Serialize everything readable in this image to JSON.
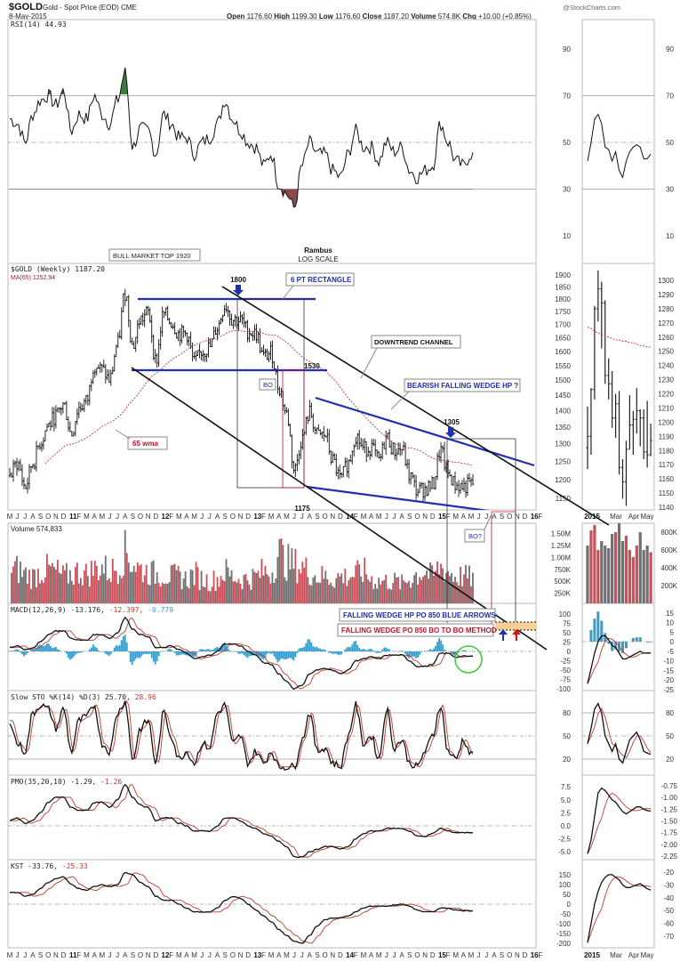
{
  "header": {
    "symbol": "$GOLD",
    "name": "Gold - Spot Price (EOD)",
    "exchange": "CME",
    "date": "8-May-2015",
    "watermark": "@StockCharts.com",
    "open_label": "Open",
    "open": "1176.60",
    "high_label": "High",
    "high": "1199.30",
    "low_label": "Low",
    "low": "1176.60",
    "close_label": "Close",
    "close": "1187.20",
    "volume_label": "Volume",
    "volume": "574.8K",
    "chg_label": "Chg",
    "chg": "+10.00 (+0.85%)"
  },
  "colors": {
    "price": "#111111",
    "ma": "#c0392b",
    "up_volume": "#c8505a",
    "down_volume": "#707070",
    "hist": "#3a9cc8",
    "rsi_high": "#3f7a3f",
    "rsi_low": "#8a4a4a",
    "annot_blue": "#1f2fb0",
    "annot_red": "#c8102e"
  },
  "annotations": {
    "bull_top": "BULL MARKET TOP 1920",
    "author": "Rambus",
    "scale": "LOG SCALE",
    "p1800": "1800",
    "rect": "6 PT RECTANGLE",
    "channel": "DOWNTREND CHANNEL",
    "p1530": "1530",
    "bo": "BO",
    "wedge": "BEARISH FALLING WEDGE HP ?",
    "p1305": "1305",
    "wma": "65 wma",
    "p1175": "1175",
    "bo_q": "BO?",
    "po_blue": "FALLING WEDGE HP PO 850 BLUE ARROWS",
    "po_red": "FALLING WEDGE PO 850 BO TO BO METHOD"
  },
  "chart_data": {
    "type": "line",
    "title": "$GOLD Gold - Spot Price (EOD) CME weekly",
    "x_start": "May 2010",
    "x_resolution": "monthly",
    "x_labels": [
      "M",
      "J",
      "J",
      "A",
      "S",
      "O",
      "N",
      "D",
      "11",
      "F",
      "M",
      "A",
      "M",
      "J",
      "J",
      "A",
      "S",
      "O",
      "N",
      "D",
      "12",
      "F",
      "M",
      "A",
      "M",
      "J",
      "J",
      "A",
      "S",
      "O",
      "N",
      "D",
      "13",
      "F",
      "M",
      "A",
      "M",
      "J",
      "J",
      "A",
      "S",
      "O",
      "N",
      "D",
      "14",
      "F",
      "M",
      "A",
      "M",
      "J",
      "J",
      "A",
      "S",
      "O",
      "N",
      "D",
      "15",
      "F",
      "M",
      "A",
      "M",
      "J",
      "J",
      "A",
      "S",
      "O",
      "N",
      "D",
      "16",
      "F"
    ],
    "mini_x_labels": [
      "2015",
      "Mar",
      "Apr",
      "May"
    ],
    "panels": {
      "rsi": {
        "legend": "RSI(14) 44.93",
        "ticks": [
          "90",
          "70",
          "50",
          "30",
          "10"
        ],
        "ylim": [
          0,
          100
        ],
        "values": [
          60,
          58,
          50,
          62,
          68,
          70,
          66,
          72,
          55,
          62,
          60,
          70,
          62,
          58,
          68,
          80,
          48,
          56,
          55,
          45,
          62,
          58,
          52,
          52,
          45,
          50,
          52,
          58,
          68,
          60,
          55,
          50,
          48,
          40,
          45,
          32,
          28,
          22,
          40,
          50,
          45,
          45,
          38,
          35,
          45,
          55,
          48,
          48,
          42,
          50,
          46,
          48,
          38,
          35,
          38,
          40,
          58,
          50,
          42,
          40,
          45
        ]
      },
      "price": {
        "legend": "$GOLD (Weekly) 1187.20",
        "ma_legend": "MA(65) 1252.94",
        "scale": "log",
        "ticks": [
          "1900",
          "1850",
          "1800",
          "1750",
          "1700",
          "1650",
          "1600",
          "1550",
          "1500",
          "1450",
          "1400",
          "1350",
          "1300",
          "1250",
          "1200",
          "1150"
        ],
        "ylim": [
          1130,
          1940
        ],
        "values": [
          1210,
          1245,
          1180,
          1245,
          1305,
          1355,
          1385,
          1420,
          1330,
          1410,
          1430,
          1555,
          1535,
          1500,
          1625,
          1825,
          1620,
          1720,
          1745,
          1565,
          1740,
          1710,
          1665,
          1665,
          1560,
          1600,
          1615,
          1690,
          1775,
          1720,
          1715,
          1675,
          1665,
          1580,
          1595,
          1475,
          1390,
          1225,
          1315,
          1395,
          1325,
          1325,
          1250,
          1200,
          1245,
          1325,
          1285,
          1290,
          1250,
          1320,
          1280,
          1285,
          1210,
          1170,
          1175,
          1185,
          1280,
          1215,
          1185,
          1180,
          1187
        ]
      },
      "volume": {
        "legend": "Volume 574,833",
        "ticks": [
          "1.50M",
          "1.25M",
          "1.00M",
          "750K",
          "500K",
          "250K"
        ],
        "unit": "K",
        "values": [
          700,
          750,
          650,
          600,
          700,
          750,
          700,
          600,
          650,
          700,
          650,
          750,
          800,
          700,
          800,
          1100,
          900,
          750,
          700,
          650,
          650,
          600,
          600,
          550,
          650,
          550,
          500,
          550,
          700,
          600,
          550,
          550,
          600,
          700,
          700,
          1100,
          900,
          850,
          800,
          700,
          600,
          600,
          550,
          600,
          600,
          650,
          700,
          550,
          500,
          500,
          500,
          450,
          550,
          650,
          700,
          600,
          800,
          700,
          600,
          600,
          575
        ]
      },
      "macd": {
        "legend": "MACD(12,26,9) -13.176,",
        "signal_legend": "-12.397,",
        "hist_legend": "-0.779",
        "ticks": [
          "100",
          "75",
          "50",
          "25",
          "0",
          "-25",
          "-50",
          "-75",
          "-100"
        ],
        "values": [
          10,
          15,
          5,
          10,
          25,
          45,
          55,
          55,
          35,
          30,
          30,
          45,
          45,
          35,
          50,
          90,
          60,
          45,
          40,
          10,
          10,
          15,
          5,
          -5,
          -20,
          -15,
          -10,
          0,
          20,
          20,
          15,
          0,
          -10,
          -30,
          -35,
          -60,
          -80,
          -100,
          -90,
          -60,
          -50,
          -45,
          -50,
          -60,
          -50,
          -25,
          -20,
          -15,
          -20,
          -10,
          -10,
          -10,
          -25,
          -40,
          -40,
          -35,
          -5,
          -5,
          -15,
          -13,
          -13
        ]
      },
      "sto": {
        "legend": "Slow STO %K(14) %D(3) 25.70,",
        "d_legend": "28.96",
        "ticks": [
          "80",
          "50",
          "20"
        ],
        "values": [
          70,
          40,
          30,
          80,
          90,
          85,
          60,
          85,
          30,
          70,
          75,
          90,
          40,
          30,
          80,
          95,
          20,
          60,
          70,
          15,
          80,
          50,
          20,
          30,
          15,
          40,
          35,
          80,
          90,
          40,
          50,
          15,
          30,
          15,
          30,
          10,
          10,
          10,
          45,
          80,
          30,
          35,
          15,
          10,
          50,
          90,
          40,
          50,
          20,
          85,
          35,
          45,
          15,
          10,
          30,
          50,
          90,
          30,
          20,
          45,
          26
        ]
      },
      "pmo": {
        "legend": "PMO(35,20,10) -1.29,",
        "signal_legend": "-1.26",
        "ticks": [
          "7.5",
          "5.0",
          "2.5",
          "0.0",
          "-2.5",
          "-5.0"
        ],
        "values": [
          1,
          1.5,
          0.5,
          1,
          2.5,
          4.5,
          5.5,
          5.5,
          3.5,
          3,
          3,
          4.5,
          4.5,
          3.5,
          5,
          8,
          5.5,
          4,
          3.5,
          1,
          1.5,
          1.5,
          0.5,
          0,
          -1,
          -1,
          -1,
          0,
          1.5,
          1.5,
          1,
          0,
          -0.5,
          -1.5,
          -2,
          -3,
          -4,
          -6,
          -6,
          -5,
          -4.5,
          -4,
          -4,
          -4.5,
          -4,
          -2.5,
          -1.5,
          -1,
          -1,
          -0.5,
          -0.5,
          -0.5,
          -1,
          -2,
          -2,
          -1.5,
          -0.5,
          -1,
          -1.3,
          -1.3,
          -1.29
        ]
      },
      "kst": {
        "legend": "KST -33.76,",
        "signal_legend": "-25.33",
        "ticks": [
          "150",
          "100",
          "50",
          "0",
          "-50",
          "-100",
          "-150",
          "-200"
        ],
        "values": [
          60,
          60,
          40,
          50,
          80,
          110,
          130,
          140,
          100,
          80,
          70,
          90,
          100,
          90,
          100,
          160,
          150,
          110,
          90,
          40,
          20,
          20,
          0,
          -20,
          -40,
          -40,
          -40,
          -20,
          20,
          40,
          30,
          0,
          -30,
          -60,
          -90,
          -130,
          -160,
          -190,
          -200,
          -160,
          -110,
          -80,
          -70,
          -70,
          -60,
          -40,
          -20,
          -10,
          -10,
          -10,
          -5,
          0,
          -10,
          -30,
          -40,
          -40,
          -20,
          -20,
          -30,
          -33,
          -34
        ]
      }
    },
    "mini": {
      "period": "2015 weekly",
      "close": [
        1190,
        1223,
        1280,
        1294,
        1284,
        1233,
        1227,
        1203,
        1213,
        1168,
        1158,
        1181,
        1198,
        1202,
        1208,
        1203,
        1179,
        1177,
        1187
      ],
      "high": [
        1211,
        1224,
        1282,
        1307,
        1299,
        1286,
        1245,
        1236,
        1220,
        1222,
        1174,
        1187,
        1219,
        1208,
        1224,
        1209,
        1209,
        1215,
        1199
      ],
      "low": [
        1167,
        1177,
        1216,
        1271,
        1252,
        1227,
        1216,
        1196,
        1189,
        1163,
        1146,
        1141,
        1181,
        1177,
        1192,
        1183,
        1174,
        1168,
        1176
      ],
      "ma": [
        1267,
        1266,
        1264,
        1263,
        1262,
        1261,
        1260,
        1259,
        1258,
        1258,
        1257,
        1257,
        1256,
        1256,
        1255,
        1254,
        1254,
        1253,
        1253
      ],
      "price_ticks": [
        "1300",
        "1290",
        "1280",
        "1270",
        "1260",
        "1250",
        "1240",
        "1230",
        "1220",
        "1210",
        "1200",
        "1190",
        "1180",
        "1170",
        "1160",
        "1150",
        "1140"
      ],
      "rsi": [
        42,
        50,
        60,
        62,
        58,
        48,
        47,
        42,
        46,
        38,
        35,
        42,
        46,
        48,
        49,
        48,
        43,
        43,
        45
      ],
      "rsi_ticks": [
        "90",
        "70",
        "50",
        "30",
        "10"
      ],
      "volume": [
        650,
        820,
        880,
        600,
        700,
        650,
        620,
        780,
        800,
        900,
        700,
        760,
        600,
        520,
        650,
        800,
        600,
        650,
        575
      ],
      "volume_ticks": [
        "800K",
        "600K",
        "400K",
        "200K"
      ],
      "macd": [
        -22,
        -14,
        -6,
        0,
        3,
        3,
        1,
        -2,
        -3,
        -6,
        -9,
        -9,
        -8,
        -7,
        -6,
        -5,
        -6,
        -6,
        -6
      ],
      "macd_ticks": [
        "15",
        "10",
        "5",
        "0",
        "-5",
        "-10",
        "-15",
        "-20",
        "-25"
      ],
      "sto": [
        40,
        60,
        85,
        92,
        80,
        50,
        40,
        30,
        40,
        20,
        15,
        30,
        45,
        50,
        55,
        45,
        30,
        28,
        26
      ],
      "sto_ticks": [
        "80",
        "50",
        "20"
      ],
      "pmo": [
        -2.2,
        -1.9,
        -1.4,
        -0.9,
        -0.8,
        -0.85,
        -0.95,
        -1.05,
        -1.1,
        -1.2,
        -1.3,
        -1.35,
        -1.3,
        -1.25,
        -1.2,
        -1.2,
        -1.25,
        -1.28,
        -1.29
      ],
      "pmo_ticks": [
        "-0.75",
        "-1.00",
        "-1.25",
        "-1.50",
        "-1.75",
        "-2.00",
        "-2.25"
      ],
      "kst": [
        -75,
        -60,
        -45,
        -35,
        -28,
        -24,
        -22,
        -22,
        -24,
        -26,
        -30,
        -32,
        -32,
        -31,
        -30,
        -29,
        -31,
        -33,
        -34
      ],
      "kst_ticks": [
        "-20",
        "-30",
        "-40",
        "-50",
        "-60",
        "-70"
      ]
    }
  }
}
